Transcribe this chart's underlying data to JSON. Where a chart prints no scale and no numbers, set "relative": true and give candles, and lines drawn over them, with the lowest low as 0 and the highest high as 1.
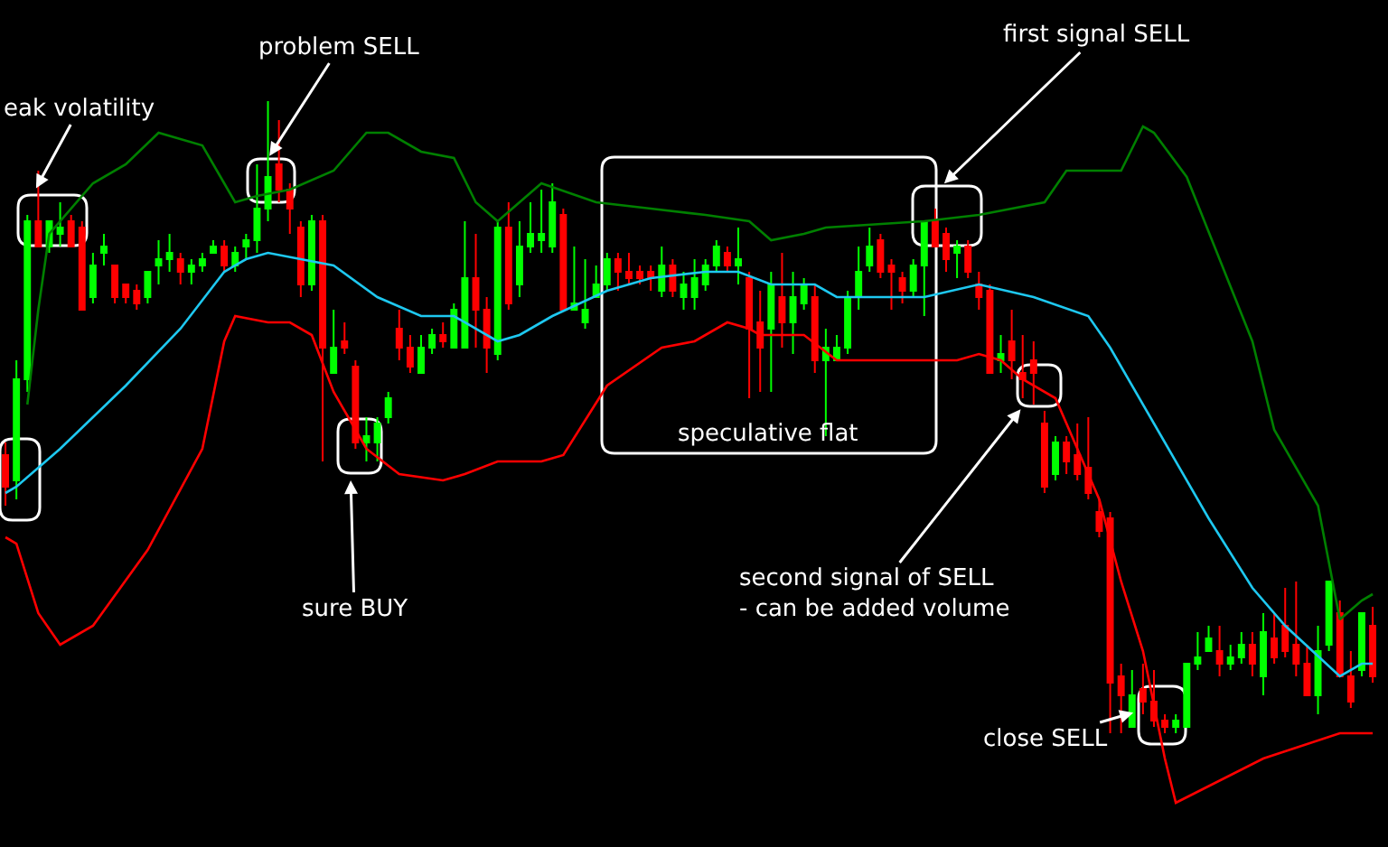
{
  "chart_data": {
    "type": "candlestick",
    "relative": true,
    "legend": false,
    "categories": [
      null,
      null,
      null,
      null,
      null,
      null,
      null,
      null,
      null,
      null,
      null,
      null,
      null,
      null,
      null,
      null,
      null,
      null,
      null,
      null,
      null,
      null,
      null,
      null,
      null,
      null,
      null,
      null,
      null,
      null,
      null,
      null,
      null,
      null,
      null,
      null,
      null,
      null,
      null,
      null,
      null,
      null,
      null,
      null,
      null,
      null,
      null,
      null,
      null,
      null,
      null,
      null,
      null,
      null,
      null,
      null,
      null,
      null,
      null,
      null,
      null,
      null,
      null,
      null,
      null,
      null,
      null,
      null,
      null,
      null,
      null,
      null,
      null,
      null,
      null,
      null,
      null,
      null,
      null,
      null,
      null,
      null,
      null,
      null,
      null,
      null,
      null,
      null,
      null,
      null,
      null,
      null,
      null,
      null,
      null,
      null,
      null,
      null,
      null,
      null,
      null,
      null,
      null,
      null,
      null,
      null,
      null,
      null,
      null,
      null,
      null,
      null,
      null,
      null,
      null,
      null,
      null,
      null,
      null,
      null,
      null,
      null,
      null,
      null,
      null,
      null
    ],
    "colors": [
      "#ff0000",
      "#00ff00",
      "#00ff00",
      "#ff0000",
      "#00ff00",
      "#00ff00",
      "#ff0000",
      "#ff0000",
      "#00ff00",
      "#00ff00",
      "#ff0000",
      "#ff0000",
      "#ff0000",
      "#00ff00",
      "#00ff00",
      "#00ff00",
      "#ff0000",
      "#00ff00",
      "#00ff00",
      "#00ff00",
      "#ff0000",
      "#00ff00",
      "#00ff00",
      "#00ff00",
      "#00ff00",
      "#ff0000",
      "#ff0000",
      "#ff0000",
      "#00ff00",
      "#ff0000",
      "#00ff00",
      "#ff0000",
      "#ff0000",
      "#00ff00",
      "#00ff00",
      "#00ff00",
      "#ff0000",
      "#ff0000",
      "#00ff00",
      "#00ff00",
      "#ff0000",
      "#00ff00",
      "#00ff00",
      "#ff0000",
      "#ff0000",
      "#00ff00",
      "#ff0000",
      "#00ff00",
      "#00ff00",
      "#00ff00",
      "#00ff00",
      "#ff0000",
      "#00ff00",
      "#00ff00",
      "#00ff00",
      "#00ff00",
      "#ff0000",
      "#ff0000",
      "#ff0000",
      "#ff0000",
      "#00ff00",
      "#ff0000",
      "#00ff00",
      "#00ff00",
      "#00ff00",
      "#00ff00",
      "#ff0000",
      "#00ff00",
      "#ff0000",
      "#ff0000",
      "#00ff00",
      "#ff0000",
      "#00ff00",
      "#00ff00",
      "#ff0000",
      "#00ff00",
      "#00ff00",
      "#00ff00",
      "#00ff00",
      "#00ff00",
      "#ff0000",
      "#ff0000",
      "#ff0000",
      "#00ff00",
      "#00ff00",
      "#ff0000",
      "#ff0000",
      "#00ff00",
      "#ff0000",
      "#ff0000",
      "#ff0000",
      "#00ff00",
      "#ff0000",
      "#ff0000",
      "#ff0000",
      "#ff0000",
      "#00ff00",
      "#ff0000",
      "#ff0000",
      "#ff0000",
      "#ff0000",
      "#ff0000",
      "#ff0000",
      "#00ff00",
      "#ff0000",
      "#ff0000",
      "#ff0000",
      "#00ff00",
      "#00ff00",
      "#00ff00",
      "#00ff00",
      "#ff0000",
      "#00ff00",
      "#00ff00",
      "#ff0000",
      "#00ff00",
      "#ff0000",
      "#ff0000",
      "#ff0000",
      "#ff0000",
      "#00ff00",
      "#00ff00",
      "#ff0000",
      "#ff0000",
      "#00ff00",
      "#ff0000"
    ],
    "ohlc": [
      [
        0.44,
        0.46,
        0.36,
        0.39
      ],
      [
        0.4,
        0.59,
        0.37,
        0.56
      ],
      [
        0.56,
        0.82,
        0.54,
        0.81
      ],
      [
        0.81,
        0.89,
        0.77,
        0.77
      ],
      [
        0.77,
        0.81,
        0.76,
        0.81
      ],
      [
        0.79,
        0.84,
        0.77,
        0.8
      ],
      [
        0.81,
        0.82,
        0.77,
        0.77
      ],
      [
        0.8,
        0.81,
        0.67,
        0.67
      ],
      [
        0.69,
        0.76,
        0.68,
        0.74
      ],
      [
        0.76,
        0.79,
        0.74,
        0.77
      ],
      [
        0.74,
        0.74,
        0.68,
        0.69
      ],
      [
        0.71,
        0.71,
        0.68,
        0.69
      ],
      [
        0.7,
        0.71,
        0.67,
        0.68
      ],
      [
        0.69,
        0.73,
        0.68,
        0.73
      ],
      [
        0.74,
        0.78,
        0.71,
        0.75
      ],
      [
        0.75,
        0.79,
        0.73,
        0.76
      ],
      [
        0.75,
        0.76,
        0.71,
        0.73
      ],
      [
        0.73,
        0.75,
        0.71,
        0.74
      ],
      [
        0.74,
        0.76,
        0.73,
        0.75
      ],
      [
        0.76,
        0.78,
        0.76,
        0.77
      ],
      [
        0.77,
        0.78,
        0.73,
        0.74
      ],
      [
        0.74,
        0.77,
        0.73,
        0.76
      ],
      [
        0.77,
        0.79,
        0.75,
        0.78
      ],
      [
        0.78,
        0.9,
        0.76,
        0.83
      ],
      [
        0.83,
        1.0,
        0.81,
        0.88
      ],
      [
        0.9,
        0.97,
        0.84,
        0.86
      ],
      [
        0.86,
        0.87,
        0.79,
        0.83
      ],
      [
        0.8,
        0.81,
        0.69,
        0.71
      ],
      [
        0.71,
        0.82,
        0.7,
        0.81
      ],
      [
        0.81,
        0.82,
        0.43,
        0.61
      ],
      [
        0.57,
        0.67,
        0.57,
        0.61
      ],
      [
        0.62,
        0.65,
        0.6,
        0.61
      ],
      [
        0.58,
        0.59,
        0.45,
        0.46
      ],
      [
        0.46,
        0.5,
        0.43,
        0.47
      ],
      [
        0.46,
        0.5,
        0.43,
        0.49
      ],
      [
        0.5,
        0.54,
        0.49,
        0.53
      ],
      [
        0.64,
        0.67,
        0.59,
        0.61
      ],
      [
        0.61,
        0.63,
        0.57,
        0.58
      ],
      [
        0.57,
        0.63,
        0.57,
        0.61
      ],
      [
        0.61,
        0.64,
        0.6,
        0.63
      ],
      [
        0.63,
        0.65,
        0.61,
        0.62
      ],
      [
        0.61,
        0.68,
        0.61,
        0.67
      ],
      [
        0.61,
        0.81,
        0.61,
        0.72
      ],
      [
        0.72,
        0.79,
        0.61,
        0.67
      ],
      [
        0.67,
        0.69,
        0.57,
        0.61
      ],
      [
        0.6,
        0.81,
        0.59,
        0.8
      ],
      [
        0.8,
        0.84,
        0.67,
        0.68
      ],
      [
        0.71,
        0.81,
        0.69,
        0.77
      ],
      [
        0.77,
        0.84,
        0.76,
        0.79
      ],
      [
        0.78,
        0.86,
        0.76,
        0.79
      ],
      [
        0.77,
        0.87,
        0.76,
        0.84
      ],
      [
        0.82,
        0.83,
        0.67,
        0.67
      ],
      [
        0.67,
        0.77,
        0.67,
        0.68
      ],
      [
        0.65,
        0.75,
        0.64,
        0.67
      ],
      [
        0.69,
        0.74,
        0.69,
        0.71
      ],
      [
        0.71,
        0.76,
        0.7,
        0.75
      ],
      [
        0.75,
        0.76,
        0.7,
        0.73
      ],
      [
        0.73,
        0.76,
        0.71,
        0.72
      ],
      [
        0.73,
        0.74,
        0.71,
        0.72
      ],
      [
        0.73,
        0.74,
        0.7,
        0.72
      ],
      [
        0.7,
        0.77,
        0.69,
        0.74
      ],
      [
        0.74,
        0.75,
        0.69,
        0.7
      ],
      [
        0.69,
        0.73,
        0.67,
        0.71
      ],
      [
        0.69,
        0.75,
        0.67,
        0.72
      ],
      [
        0.71,
        0.75,
        0.7,
        0.74
      ],
      [
        0.74,
        0.78,
        0.73,
        0.77
      ],
      [
        0.76,
        0.77,
        0.73,
        0.74
      ],
      [
        0.74,
        0.8,
        0.71,
        0.75
      ],
      [
        0.72,
        0.73,
        0.53,
        0.64
      ],
      [
        0.65,
        0.7,
        0.54,
        0.61
      ],
      [
        0.64,
        0.73,
        0.54,
        0.71
      ],
      [
        0.69,
        0.76,
        0.61,
        0.65
      ],
      [
        0.65,
        0.73,
        0.6,
        0.69
      ],
      [
        0.68,
        0.72,
        0.67,
        0.71
      ],
      [
        0.69,
        0.71,
        0.57,
        0.59
      ],
      [
        0.59,
        0.64,
        0.47,
        0.61
      ],
      [
        0.59,
        0.63,
        0.59,
        0.61
      ],
      [
        0.61,
        0.7,
        0.6,
        0.69
      ],
      [
        0.69,
        0.77,
        0.67,
        0.73
      ],
      [
        0.74,
        0.8,
        0.73,
        0.77
      ],
      [
        0.78,
        0.79,
        0.72,
        0.73
      ],
      [
        0.74,
        0.75,
        0.67,
        0.73
      ],
      [
        0.72,
        0.73,
        0.68,
        0.7
      ],
      [
        0.7,
        0.75,
        0.69,
        0.74
      ],
      [
        0.74,
        0.81,
        0.66,
        0.81
      ],
      [
        0.81,
        0.83,
        0.77,
        0.77
      ],
      [
        0.79,
        0.8,
        0.73,
        0.75
      ],
      [
        0.76,
        0.78,
        0.72,
        0.77
      ],
      [
        0.77,
        0.78,
        0.72,
        0.73
      ],
      [
        0.71,
        0.73,
        0.67,
        0.69
      ],
      [
        0.7,
        0.71,
        0.57,
        0.57
      ],
      [
        0.59,
        0.63,
        0.57,
        0.6
      ],
      [
        0.62,
        0.67,
        0.56,
        0.59
      ],
      [
        0.57,
        0.63,
        0.53,
        0.56
      ],
      [
        0.59,
        0.62,
        0.52,
        0.57
      ],
      [
        0.49,
        0.51,
        0.38,
        0.39
      ],
      [
        0.41,
        0.47,
        0.4,
        0.46
      ],
      [
        0.46,
        0.47,
        0.41,
        0.43
      ],
      [
        0.44,
        0.49,
        0.4,
        0.41
      ],
      [
        0.42,
        0.5,
        0.37,
        0.38
      ],
      [
        0.35,
        0.37,
        0.31,
        0.32
      ],
      [
        0.34,
        0.35,
        0,
        0.08
      ],
      [
        0.09,
        0.11,
        0,
        0.06
      ],
      [
        0.01,
        0.1,
        0.01,
        0.06
      ],
      [
        0.07,
        0.11,
        0.03,
        0.05
      ],
      [
        0.05,
        0.1,
        0.01,
        0.02
      ],
      [
        0.02,
        0.03,
        0,
        0.01
      ],
      [
        0.01,
        0.03,
        0,
        0.02
      ],
      [
        0.01,
        0.11,
        0.01,
        0.11
      ],
      [
        0.11,
        0.16,
        0.1,
        0.12
      ],
      [
        0.13,
        0.17,
        0.13,
        0.15
      ],
      [
        0.13,
        0.17,
        0.09,
        0.11
      ],
      [
        0.11,
        0.14,
        0.1,
        0.12
      ],
      [
        0.12,
        0.16,
        0.11,
        0.14
      ],
      [
        0.14,
        0.16,
        0.09,
        0.11
      ],
      [
        0.09,
        0.19,
        0.06,
        0.16
      ],
      [
        0.15,
        0.19,
        0.11,
        0.12
      ],
      [
        0.17,
        0.23,
        0.12,
        0.13
      ],
      [
        0.14,
        0.24,
        0.09,
        0.11
      ],
      [
        0.11,
        0.14,
        0.06,
        0.06
      ],
      [
        0.06,
        0.17,
        0.03,
        0.13
      ],
      [
        0.14,
        0.24,
        0.13,
        0.24
      ],
      [
        0.19,
        0.21,
        0.09,
        0.09
      ],
      [
        0.09,
        0.13,
        0.04,
        0.05
      ],
      [
        0.1,
        0.19,
        0.09,
        0.19
      ],
      [
        0.17,
        0.2,
        0.08,
        0.09
      ]
    ],
    "series": [
      {
        "type": "line",
        "color": "#008000",
        "values": [
          null,
          null,
          0.52,
          0.67,
          0.79,
          null,
          null,
          null,
          0.87,
          null,
          null,
          0.9,
          null,
          null,
          0.95,
          null,
          null,
          null,
          0.93,
          null,
          0.87,
          0.84,
          null,
          0.85,
          null,
          null,
          0.86,
          null,
          null,
          null,
          0.89,
          null,
          null,
          0.95,
          null,
          0.95,
          null,
          null,
          0.92,
          null,
          null,
          0.91,
          null,
          0.84,
          null,
          0.81,
          null,
          null,
          null,
          0.87,
          null,
          null,
          null,
          null,
          0.84,
          null,
          null,
          null,
          null,
          0.83,
          null,
          null,
          null,
          null,
          0.82,
          null,
          null,
          null,
          0.81,
          null,
          0.78,
          null,
          null,
          0.79,
          null,
          0.8,
          null,
          null,
          null,
          null,
          null,
          null,
          null,
          null,
          0.81,
          null,
          null,
          null,
          null,
          0.82,
          null,
          null,
          null,
          null,
          null,
          0.84,
          null,
          0.89,
          null,
          null,
          null,
          null,
          0.89,
          null,
          0.96,
          0.95,
          null,
          null,
          0.88,
          null,
          null,
          0.75,
          null,
          null,
          0.62,
          null,
          0.48,
          null,
          null,
          null,
          0.36,
          null,
          0.18,
          null,
          0.21,
          0.22
        ]
      },
      {
        "type": "line",
        "color": "#1ec8f0",
        "values": [
          0.38,
          0.39,
          null,
          null,
          null,
          0.45,
          null,
          null,
          null,
          null,
          null,
          0.55,
          null,
          null,
          null,
          null,
          0.64,
          null,
          null,
          null,
          0.73,
          null,
          0.75,
          null,
          0.76,
          null,
          null,
          0.75,
          null,
          null,
          0.74,
          null,
          null,
          null,
          0.69,
          null,
          null,
          null,
          0.66,
          null,
          null,
          0.66,
          null,
          null,
          null,
          0.62,
          null,
          0.63,
          null,
          null,
          0.66,
          null,
          null,
          null,
          null,
          0.7,
          null,
          null,
          null,
          0.72,
          null,
          null,
          null,
          null,
          0.73,
          null,
          null,
          0.73,
          null,
          null,
          0.71,
          null,
          null,
          null,
          0.71,
          null,
          0.69,
          null,
          null,
          0.69,
          null,
          null,
          null,
          null,
          0.69,
          null,
          null,
          null,
          null,
          0.71,
          null,
          null,
          null,
          null,
          0.69,
          null,
          null,
          null,
          null,
          0.66,
          null,
          0.61,
          null,
          null,
          null,
          0.49,
          null,
          null,
          null,
          null,
          0.34,
          null,
          null,
          null,
          0.23,
          null,
          null,
          0.17,
          null,
          null,
          null,
          null,
          0.09,
          null,
          0.11,
          0.11
        ]
      },
      {
        "type": "line",
        "color": "#ff0000",
        "values": [
          0.31,
          0.3,
          null,
          0.19,
          null,
          0.14,
          null,
          null,
          0.17,
          null,
          null,
          null,
          null,
          0.29,
          null,
          null,
          null,
          null,
          0.45,
          null,
          0.62,
          0.66,
          null,
          null,
          0.65,
          null,
          0.65,
          null,
          0.63,
          null,
          0.54,
          null,
          null,
          0.45,
          null,
          null,
          0.41,
          null,
          null,
          null,
          0.4,
          null,
          0.41,
          null,
          null,
          0.43,
          null,
          null,
          null,
          0.43,
          null,
          0.44,
          null,
          null,
          null,
          0.55,
          null,
          null,
          null,
          null,
          0.61,
          null,
          null,
          0.62,
          null,
          null,
          0.65,
          null,
          0.64,
          0.63,
          null,
          null,
          null,
          0.63,
          null,
          null,
          0.59,
          null,
          null,
          null,
          null,
          null,
          null,
          null,
          0.59,
          null,
          null,
          0.59,
          null,
          0.6,
          null,
          0.59,
          null,
          0.56,
          null,
          null,
          0.53,
          null,
          null,
          null,
          0.37,
          null,
          0.24,
          null,
          0.13,
          null,
          -0.04,
          -0.11,
          null,
          null,
          null,
          null,
          null,
          null,
          null,
          -0.04,
          null,
          null,
          null,
          null,
          null,
          null,
          0,
          null,
          null,
          0
        ]
      }
    ],
    "annotations": [
      "eak volatility",
      "problem SELL",
      "first signal SELL",
      "speculative flat",
      "sure BUY",
      "second signal of SELL\n- can be added volume",
      "close SELL"
    ]
  }
}
